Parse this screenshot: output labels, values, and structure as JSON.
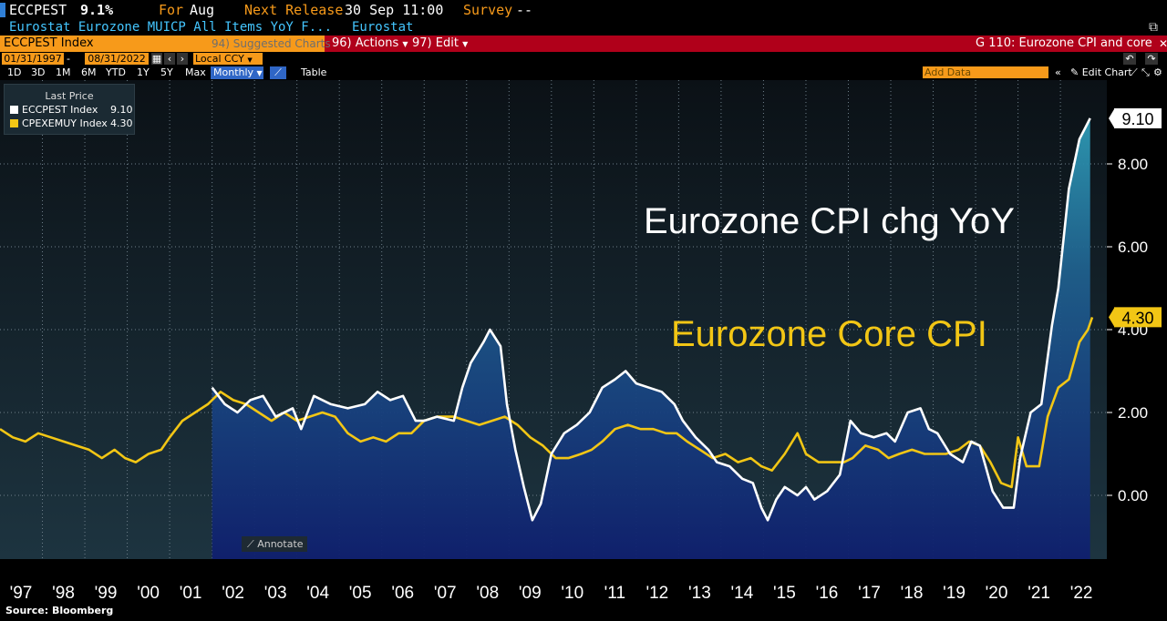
{
  "header": {
    "ticker": "ECCPEST",
    "last_value": "9.1%",
    "for_label": "For",
    "for_value": "Aug",
    "next_release_label": "Next Release",
    "next_release_value": "30 Sep 11:00",
    "survey_label": "Survey",
    "survey_value": "--",
    "description": "Eurostat Eurozone MUICP All Items YoY F...",
    "source_name": "Eurostat"
  },
  "toolbar": {
    "security": "ECCPEST Index",
    "suggested": "94) Suggested Charts",
    "actions": "96) Actions",
    "edit": "97) Edit",
    "chart_title": "G 110: Eurozone CPI and core",
    "date_from": "01/31/1997",
    "date_sep": "-",
    "date_to": "08/31/2022",
    "currency": "Local CCY",
    "periods": [
      "1D",
      "3D",
      "1M",
      "6M",
      "YTD",
      "1Y",
      "5Y",
      "Max"
    ],
    "frequency": "Monthly",
    "table_label": "Table",
    "add_data_placeholder": "Add Data",
    "edit_chart": "Edit Chart"
  },
  "legend": {
    "title": "Last Price",
    "items": [
      {
        "name": "ECCPEST Index",
        "value": "9.10",
        "color": "#ffffff"
      },
      {
        "name": "CPEXEMUY Index",
        "value": "4.30",
        "color": "#f2c615"
      }
    ]
  },
  "annotate_label": "Annotate",
  "source": "Source: Bloomberg",
  "chart_data": {
    "type": "line",
    "annotations": [
      {
        "text": "Eurozone CPI chg YoY",
        "color": "#ffffff"
      },
      {
        "text": "Eurozone Core CPI",
        "color": "#f2c615"
      }
    ],
    "y_axis": {
      "ticks": [
        "9.10",
        "8.00",
        "6.00",
        "4.00",
        "2.00",
        "0.00"
      ],
      "ylim": [
        -1.5,
        9.8
      ]
    },
    "x_axis": {
      "ticks": [
        "'97",
        "'98",
        "'99",
        "'00",
        "'01",
        "'02",
        "'03",
        "'04",
        "'05",
        "'06",
        "'07",
        "'08",
        "'09",
        "'10",
        "'11",
        "'12",
        "'13",
        "'14",
        "'15",
        "'16",
        "'17",
        "'18",
        "'19",
        "'20",
        "'21",
        "'22"
      ],
      "range": [
        1997.0,
        2022.75
      ]
    },
    "last_value_labels": [
      {
        "text": "9.10",
        "value": 9.1,
        "bg": "#ffffff",
        "fg": "#000000"
      },
      {
        "text": "4.30",
        "value": 4.3,
        "bg": "#f2c615",
        "fg": "#000000"
      }
    ],
    "grid": true,
    "series": [
      {
        "name": "ECCPEST Index",
        "color": "#ffffff",
        "filled": true,
        "points": [
          [
            2002.0,
            2.6
          ],
          [
            2002.3,
            2.2
          ],
          [
            2002.6,
            2.0
          ],
          [
            2002.9,
            2.3
          ],
          [
            2003.2,
            2.4
          ],
          [
            2003.5,
            1.9
          ],
          [
            2003.9,
            2.1
          ],
          [
            2004.1,
            1.6
          ],
          [
            2004.4,
            2.4
          ],
          [
            2004.8,
            2.2
          ],
          [
            2005.2,
            2.1
          ],
          [
            2005.6,
            2.2
          ],
          [
            2005.9,
            2.5
          ],
          [
            2006.2,
            2.3
          ],
          [
            2006.5,
            2.4
          ],
          [
            2006.8,
            1.8
          ],
          [
            2007.0,
            1.8
          ],
          [
            2007.3,
            1.9
          ],
          [
            2007.7,
            1.8
          ],
          [
            2007.9,
            2.6
          ],
          [
            2008.1,
            3.2
          ],
          [
            2008.4,
            3.7
          ],
          [
            2008.55,
            4.0
          ],
          [
            2008.8,
            3.6
          ],
          [
            2008.95,
            2.2
          ],
          [
            2009.15,
            1.1
          ],
          [
            2009.35,
            0.2
          ],
          [
            2009.55,
            -0.6
          ],
          [
            2009.75,
            -0.2
          ],
          [
            2010.0,
            1.0
          ],
          [
            2010.3,
            1.5
          ],
          [
            2010.6,
            1.7
          ],
          [
            2010.9,
            2.0
          ],
          [
            2011.2,
            2.6
          ],
          [
            2011.5,
            2.8
          ],
          [
            2011.75,
            3.0
          ],
          [
            2012.0,
            2.7
          ],
          [
            2012.3,
            2.6
          ],
          [
            2012.6,
            2.5
          ],
          [
            2012.9,
            2.2
          ],
          [
            2013.1,
            1.8
          ],
          [
            2013.4,
            1.4
          ],
          [
            2013.7,
            1.1
          ],
          [
            2013.9,
            0.8
          ],
          [
            2014.2,
            0.7
          ],
          [
            2014.5,
            0.4
          ],
          [
            2014.75,
            0.3
          ],
          [
            2014.95,
            -0.3
          ],
          [
            2015.1,
            -0.6
          ],
          [
            2015.3,
            -0.1
          ],
          [
            2015.5,
            0.2
          ],
          [
            2015.8,
            0.0
          ],
          [
            2016.0,
            0.2
          ],
          [
            2016.2,
            -0.1
          ],
          [
            2016.5,
            0.1
          ],
          [
            2016.8,
            0.5
          ],
          [
            2017.05,
            1.8
          ],
          [
            2017.3,
            1.5
          ],
          [
            2017.6,
            1.4
          ],
          [
            2017.9,
            1.5
          ],
          [
            2018.1,
            1.3
          ],
          [
            2018.4,
            2.0
          ],
          [
            2018.7,
            2.1
          ],
          [
            2018.9,
            1.6
          ],
          [
            2019.1,
            1.5
          ],
          [
            2019.4,
            1.0
          ],
          [
            2019.7,
            0.8
          ],
          [
            2019.9,
            1.3
          ],
          [
            2020.1,
            1.2
          ],
          [
            2020.4,
            0.1
          ],
          [
            2020.65,
            -0.3
          ],
          [
            2020.9,
            -0.3
          ],
          [
            2021.05,
            0.9
          ],
          [
            2021.3,
            2.0
          ],
          [
            2021.55,
            2.2
          ],
          [
            2021.8,
            4.1
          ],
          [
            2021.95,
            5.0
          ],
          [
            2022.2,
            7.4
          ],
          [
            2022.45,
            8.6
          ],
          [
            2022.6,
            8.9
          ],
          [
            2022.7,
            9.1
          ]
        ]
      },
      {
        "name": "CPEXEMUY Index",
        "color": "#f2c615",
        "filled": false,
        "points": [
          [
            1997.0,
            1.6
          ],
          [
            1997.3,
            1.4
          ],
          [
            1997.6,
            1.3
          ],
          [
            1997.9,
            1.5
          ],
          [
            1998.2,
            1.4
          ],
          [
            1998.5,
            1.3
          ],
          [
            1998.8,
            1.2
          ],
          [
            1999.1,
            1.1
          ],
          [
            1999.4,
            0.9
          ],
          [
            1999.7,
            1.1
          ],
          [
            1999.95,
            0.9
          ],
          [
            2000.2,
            0.8
          ],
          [
            2000.5,
            1.0
          ],
          [
            2000.8,
            1.1
          ],
          [
            2001.0,
            1.4
          ],
          [
            2001.3,
            1.8
          ],
          [
            2001.6,
            2.0
          ],
          [
            2001.9,
            2.2
          ],
          [
            2002.2,
            2.5
          ],
          [
            2002.5,
            2.3
          ],
          [
            2002.8,
            2.2
          ],
          [
            2003.1,
            2.0
          ],
          [
            2003.4,
            1.8
          ],
          [
            2003.7,
            2.0
          ],
          [
            2004.0,
            1.8
          ],
          [
            2004.3,
            1.9
          ],
          [
            2004.6,
            2.0
          ],
          [
            2004.9,
            1.9
          ],
          [
            2005.2,
            1.5
          ],
          [
            2005.5,
            1.3
          ],
          [
            2005.8,
            1.4
          ],
          [
            2006.1,
            1.3
          ],
          [
            2006.4,
            1.5
          ],
          [
            2006.7,
            1.5
          ],
          [
            2007.0,
            1.8
          ],
          [
            2007.3,
            1.9
          ],
          [
            2007.7,
            1.9
          ],
          [
            2008.0,
            1.8
          ],
          [
            2008.3,
            1.7
          ],
          [
            2008.6,
            1.8
          ],
          [
            2008.9,
            1.9
          ],
          [
            2009.2,
            1.7
          ],
          [
            2009.5,
            1.4
          ],
          [
            2009.8,
            1.2
          ],
          [
            2010.1,
            0.9
          ],
          [
            2010.4,
            0.9
          ],
          [
            2010.7,
            1.0
          ],
          [
            2010.95,
            1.1
          ],
          [
            2011.2,
            1.3
          ],
          [
            2011.5,
            1.6
          ],
          [
            2011.8,
            1.7
          ],
          [
            2012.1,
            1.6
          ],
          [
            2012.4,
            1.6
          ],
          [
            2012.7,
            1.5
          ],
          [
            2012.95,
            1.5
          ],
          [
            2013.2,
            1.3
          ],
          [
            2013.5,
            1.1
          ],
          [
            2013.8,
            0.9
          ],
          [
            2014.1,
            1.0
          ],
          [
            2014.4,
            0.8
          ],
          [
            2014.7,
            0.9
          ],
          [
            2014.95,
            0.7
          ],
          [
            2015.2,
            0.6
          ],
          [
            2015.5,
            1.0
          ],
          [
            2015.8,
            1.5
          ],
          [
            2016.0,
            1.0
          ],
          [
            2016.3,
            0.8
          ],
          [
            2016.6,
            0.8
          ],
          [
            2016.9,
            0.8
          ],
          [
            2017.1,
            0.9
          ],
          [
            2017.4,
            1.2
          ],
          [
            2017.7,
            1.1
          ],
          [
            2017.95,
            0.9
          ],
          [
            2018.2,
            1.0
          ],
          [
            2018.5,
            1.1
          ],
          [
            2018.8,
            1.0
          ],
          [
            2019.05,
            1.0
          ],
          [
            2019.3,
            1.0
          ],
          [
            2019.6,
            1.1
          ],
          [
            2019.85,
            1.3
          ],
          [
            2020.1,
            1.2
          ],
          [
            2020.35,
            0.8
          ],
          [
            2020.6,
            0.3
          ],
          [
            2020.85,
            0.2
          ],
          [
            2021.0,
            1.4
          ],
          [
            2021.2,
            0.7
          ],
          [
            2021.5,
            0.7
          ],
          [
            2021.7,
            1.9
          ],
          [
            2021.95,
            2.6
          ],
          [
            2022.2,
            2.8
          ],
          [
            2022.45,
            3.7
          ],
          [
            2022.65,
            4.0
          ],
          [
            2022.75,
            4.3
          ]
        ]
      }
    ]
  }
}
